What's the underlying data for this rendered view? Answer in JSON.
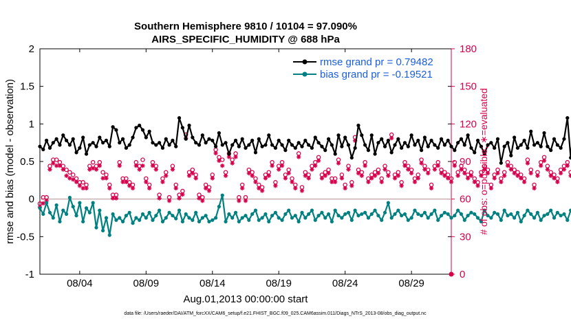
{
  "colors": {
    "rmse": "#000000",
    "bias": "#008080",
    "obs": "#d6004b",
    "zero_line": "#c9b0b0",
    "legend_text": "#1a5dde"
  },
  "chart_data": {
    "type": "line",
    "title": "Southern Hemisphere 9810 / 10104 = 97.090%",
    "subtitle": "AIRS_SPECIFIC_HUMIDITY @ 688 hPa",
    "xlabel": "Aug.01,2013 00:00:00 start",
    "ylabel": "rmse and bias (model - observation)",
    "ylabel_right": "# of obs: o=possible; ∗=evaluated",
    "footnote": "data file: /Users/raeder/DAI/ATM_forcXX/CAM6_setup/f.e21.FHIST_BGC.f09_025.CAM6assim.011/Diags_NTrS_2013-08/obs_diag_output.nc",
    "xlim": [
      1.0,
      32.0
    ],
    "ylim": [
      -1,
      2
    ],
    "ylim_right": [
      0,
      180
    ],
    "x_ticks": [
      4,
      9,
      14,
      19,
      24,
      29
    ],
    "x_tick_labels": [
      "08/04",
      "08/09",
      "08/14",
      "08/19",
      "08/24",
      "08/29"
    ],
    "y_ticks": [
      "-1",
      "-0.5",
      "0",
      "0.5",
      "1",
      "1.5",
      "2"
    ],
    "y_ticks_right": [
      "0",
      "30",
      "60",
      "90",
      "120",
      "150",
      "180"
    ],
    "grid": false,
    "legend_position": "top-right",
    "series": [
      {
        "name": "rmse",
        "legend": "rmse grand pr = 0.79482",
        "axis": "left",
        "marker": "filled-circle",
        "x_start": 1.0,
        "x_step": 0.25,
        "values": [
          0.7,
          0.66,
          0.78,
          0.68,
          0.75,
          0.8,
          0.72,
          0.85,
          0.78,
          0.72,
          0.8,
          0.62,
          0.68,
          0.82,
          0.6,
          0.72,
          0.75,
          0.7,
          0.82,
          0.75,
          0.78,
          0.7,
          0.96,
          0.92,
          0.75,
          0.8,
          0.68,
          0.72,
          0.82,
          0.95,
          0.98,
          0.92,
          0.82,
          0.9,
          0.75,
          0.72,
          0.75,
          0.68,
          0.8,
          0.72,
          0.78,
          0.7,
          1.08,
          0.95,
          0.8,
          0.98,
          0.82,
          0.75,
          0.72,
          0.85,
          0.75,
          0.8,
          0.78,
          0.7,
          0.88,
          0.72,
          0.75,
          0.6,
          0.72,
          0.78,
          0.7,
          0.8,
          0.68,
          0.72,
          0.78,
          0.62,
          0.8,
          0.7,
          0.72,
          0.85,
          0.72,
          0.68,
          0.78,
          0.72,
          0.65,
          0.78,
          0.72,
          0.68,
          0.75,
          0.7,
          0.78,
          0.72,
          0.68,
          0.82,
          0.75,
          0.7,
          0.65,
          0.8,
          0.72,
          0.6,
          0.85,
          0.7,
          0.82,
          0.72,
          0.55,
          0.68,
          0.98,
          0.85,
          0.72,
          0.65,
          0.85,
          0.6,
          0.75,
          0.8,
          0.7,
          0.78,
          0.62,
          0.72,
          0.8,
          0.68,
          0.75,
          0.7,
          0.85,
          0.72,
          0.78,
          0.65,
          0.82,
          0.7,
          0.78,
          0.72,
          0.68,
          0.8,
          0.72,
          0.78,
          0.7,
          0.65,
          0.75,
          0.8,
          0.72,
          0.85,
          0.68,
          0.62,
          0.78,
          0.7,
          0.6,
          0.72,
          0.75,
          0.68,
          0.8,
          0.48,
          0.7,
          0.75,
          0.58,
          0.82,
          0.68,
          0.72,
          0.78,
          0.68,
          0.9,
          0.72,
          0.75,
          0.7,
          0.88,
          0.7,
          0.65,
          0.8,
          0.72,
          0.68,
          0.8,
          1.08,
          0.55,
          1.02,
          0.62,
          0.78,
          0.55,
          0.82,
          0.5,
          1.05,
          0.72,
          0.88,
          0.62,
          0.8,
          0.88,
          0.68,
          0.78,
          0.65,
          0.72,
          0.8,
          0.85,
          0.7,
          0.78,
          0.85,
          0.9,
          0.72,
          0.68,
          0.75,
          0.62,
          0.78,
          0.65,
          0.88,
          0.75,
          0.7,
          0.8,
          0.62,
          0.72,
          0.78,
          0.7,
          0.75,
          0.68,
          0.72,
          0.9,
          0.78,
          0.68,
          0.85,
          0.65,
          0.7,
          0.62,
          0.72,
          0.68,
          0.7,
          0.65
        ]
      },
      {
        "name": "bias",
        "legend": "bias grand pr = -0.19521",
        "axis": "left",
        "marker": "filled-circle",
        "x_start": 1.0,
        "x_step": 0.25,
        "values": [
          -0.12,
          -0.2,
          -0.05,
          -0.18,
          -0.25,
          -0.08,
          -0.3,
          -0.15,
          -0.2,
          0.02,
          -0.1,
          -0.22,
          -0.05,
          -0.3,
          -0.12,
          -0.18,
          -0.05,
          -0.38,
          -0.15,
          -0.42,
          -0.25,
          -0.48,
          -0.2,
          -0.28,
          -0.25,
          -0.3,
          -0.22,
          -0.18,
          -0.32,
          -0.25,
          -0.28,
          -0.2,
          -0.25,
          -0.18,
          -0.28,
          -0.22,
          -0.15,
          -0.3,
          -0.25,
          -0.18,
          -0.22,
          -0.26,
          -0.15,
          -0.3,
          -0.2,
          -0.25,
          -0.28,
          -0.18,
          -0.3,
          -0.25,
          -0.22,
          -0.3,
          -0.28,
          -0.25,
          -0.1,
          0.05,
          -0.3,
          -0.2,
          -0.25,
          -0.18,
          -0.3,
          -0.25,
          -0.22,
          -0.28,
          -0.2,
          -0.15,
          -0.28,
          -0.25,
          -0.2,
          -0.3,
          -0.22,
          -0.18,
          -0.25,
          -0.28,
          -0.2,
          -0.15,
          -0.25,
          -0.22,
          -0.3,
          -0.18,
          -0.25,
          -0.2,
          -0.15,
          -0.28,
          -0.22,
          -0.18,
          -0.25,
          -0.2,
          -0.3,
          -0.15,
          -0.22,
          -0.25,
          -0.2,
          -0.18,
          -0.28,
          -0.15,
          -0.22,
          -0.2,
          -0.18,
          -0.25,
          -0.2,
          -0.15,
          -0.22,
          -0.28,
          -0.18,
          -0.05,
          -0.25,
          -0.2,
          -0.15,
          -0.22,
          -0.2,
          -0.28,
          -0.25,
          -0.15,
          -0.2,
          -0.22,
          -0.18,
          -0.25,
          -0.2,
          -0.15,
          -0.28,
          -0.22,
          -0.18,
          -0.2,
          -0.25,
          -0.22,
          -0.15,
          -0.2,
          -0.28,
          -0.22,
          -0.18,
          -0.2,
          -0.25,
          -0.3,
          -0.15,
          -0.22,
          -0.25,
          -0.18,
          -0.2,
          -0.28,
          -0.15,
          -0.22,
          -0.2,
          -0.25,
          -0.18,
          -0.3,
          -0.22,
          -0.15,
          -0.2,
          -0.25,
          -0.18,
          -0.28,
          -0.22,
          -0.2,
          -0.15,
          -0.25,
          -0.18,
          -0.22,
          -0.2,
          -0.28,
          -0.15,
          -0.25,
          -0.22,
          -0.18,
          -0.2,
          -0.25,
          -0.3,
          -0.15,
          -0.22,
          -0.2,
          -0.28,
          -0.18,
          -0.25,
          -0.22,
          -0.05,
          -0.2,
          -0.15,
          -0.28,
          -0.22,
          -0.18,
          -0.25,
          -0.2,
          -0.15,
          -0.3,
          -0.22,
          -0.2,
          -0.18,
          -0.28,
          -0.25,
          -0.2,
          -0.15,
          -0.22,
          -0.18,
          -0.25,
          -0.2,
          -0.15,
          -0.3,
          -0.22,
          -0.18,
          -0.2,
          -0.25,
          -0.22,
          -0.15,
          -0.18,
          -0.2,
          -0.22,
          -0.18,
          -0.15,
          -0.18,
          -0.2,
          -0.15,
          -0.18
        ]
      },
      {
        "name": "obs_possible",
        "axis": "right",
        "marker": "open-circle",
        "x_start": 1.0,
        "x_step": 0.25,
        "values": [
          55,
          60,
          60,
          85,
          90,
          90,
          88,
          85,
          82,
          80,
          78,
          75,
          72,
          72,
          70,
          85,
          88,
          85,
          88,
          80,
          78,
          70,
          62,
          62,
          88,
          75,
          75,
          72,
          70,
          88,
          85,
          90,
          75,
          70,
          88,
          85,
          62,
          75,
          80,
          60,
          85,
          70,
          62,
          65,
          110,
          80,
          82,
          78,
          62,
          60,
          70,
          68,
          78,
          98,
          92,
          90,
          80,
          95,
          90,
          95,
          60,
          70,
          60,
          82,
          80,
          75,
          70,
          68,
          78,
          80,
          88,
          72,
          85,
          88,
          78,
          82,
          75,
          70,
          95,
          68,
          80,
          78,
          85,
          88,
          92,
          78,
          80,
          82,
          75,
          75,
          90,
          78,
          70,
          85,
          72,
          108,
          82,
          80,
          88,
          75,
          78,
          80,
          82,
          75,
          85,
          80,
          110,
          78,
          80,
          72,
          88,
          85,
          82,
          75,
          78,
          90,
          85,
          82,
          70,
          85,
          88,
          82,
          80,
          78,
          75,
          88,
          80,
          85,
          82,
          78,
          80,
          75,
          72,
          80,
          85,
          82,
          70,
          78,
          82,
          75,
          80,
          88,
          85,
          82,
          80,
          78,
          75,
          90,
          82,
          70,
          80,
          88,
          92,
          85,
          80,
          78,
          75,
          82,
          85,
          88,
          80,
          78,
          82,
          75,
          70,
          82,
          85,
          88,
          80,
          78,
          82,
          110,
          82,
          85,
          78,
          80,
          88,
          75,
          82,
          85,
          90,
          78,
          80,
          88,
          82,
          85,
          78,
          90,
          82,
          80,
          88,
          75,
          82,
          85,
          90,
          92,
          80,
          78,
          82,
          88,
          85,
          90,
          82,
          80,
          88,
          85,
          80,
          82,
          78,
          85
        ]
      },
      {
        "name": "obs_evaluated",
        "axis": "right",
        "marker": "asterisk",
        "x_start": 1.0,
        "x_step": 0.25,
        "values": [
          55,
          58,
          60,
          85,
          90,
          88,
          88,
          85,
          80,
          78,
          77,
          75,
          72,
          70,
          70,
          85,
          86,
          85,
          88,
          78,
          78,
          70,
          62,
          62,
          88,
          75,
          75,
          72,
          70,
          88,
          85,
          88,
          75,
          70,
          88,
          85,
          62,
          75,
          80,
          60,
          85,
          70,
          62,
          65,
          110,
          80,
          82,
          78,
          62,
          60,
          70,
          68,
          78,
          98,
          92,
          88,
          80,
          95,
          90,
          95,
          60,
          70,
          60,
          82,
          80,
          75,
          70,
          68,
          78,
          80,
          88,
          72,
          85,
          88,
          78,
          82,
          75,
          70,
          95,
          68,
          80,
          78,
          85,
          88,
          92,
          78,
          80,
          82,
          75,
          75,
          90,
          78,
          70,
          85,
          72,
          108,
          82,
          80,
          88,
          75,
          78,
          80,
          82,
          75,
          85,
          80,
          110,
          78,
          80,
          72,
          88,
          85,
          82,
          75,
          78,
          90,
          85,
          82,
          70,
          85,
          88,
          82,
          80,
          78,
          75,
          88,
          80,
          85,
          82,
          78,
          80,
          75,
          72,
          80,
          85,
          82,
          70,
          78,
          82,
          75,
          80,
          88,
          85,
          82,
          80,
          78,
          75,
          90,
          82,
          70,
          80,
          88,
          92,
          85,
          80,
          78,
          75,
          82,
          85,
          88,
          80,
          78,
          82,
          75,
          70,
          82,
          85,
          88,
          80,
          78,
          82,
          110,
          82,
          85,
          78,
          80,
          88,
          75,
          82,
          85,
          90,
          78,
          80,
          88,
          82,
          85,
          78,
          90,
          82,
          80,
          88,
          75,
          82,
          85,
          90,
          92,
          80,
          78,
          82,
          88,
          85,
          90,
          82,
          80,
          88,
          85,
          80,
          82,
          78,
          85
        ]
      }
    ]
  }
}
